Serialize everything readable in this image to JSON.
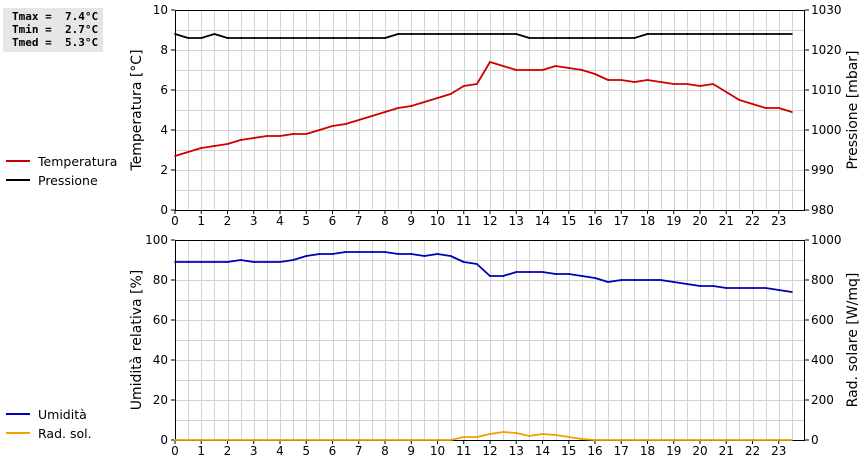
{
  "stats": {
    "tmax": "Tmax =  7.4°C",
    "tmin": "Tmin =  2.7°C",
    "tmed": "Tmed =  5.3°C"
  },
  "chart_data": [
    {
      "type": "line",
      "panel": "top",
      "x_ticks": [
        "0",
        "1",
        "2",
        "3",
        "4",
        "5",
        "6",
        "7",
        "8",
        "9",
        "10",
        "11",
        "12",
        "13",
        "14",
        "15",
        "16",
        "17",
        "18",
        "19",
        "20",
        "21",
        "22",
        "23"
      ],
      "xlim": [
        0,
        24
      ],
      "ylabel": "Temperatura [°C]",
      "ylim": [
        0,
        10
      ],
      "y_ticks": [
        "0",
        "2",
        "4",
        "6",
        "8",
        "10"
      ],
      "ylabel_right": "Pressione [mbar]",
      "ylim_right": [
        980,
        1030
      ],
      "y_ticks_right": [
        "980",
        "990",
        "1000",
        "1010",
        "1020",
        "1030"
      ],
      "grid": true,
      "legend_position": "left",
      "series": [
        {
          "name": "Temperatura",
          "color": "#cc0000",
          "axis": "left",
          "x": [
            0,
            0.5,
            1,
            1.5,
            2,
            2.5,
            3,
            3.5,
            4,
            4.5,
            5,
            5.5,
            6,
            6.5,
            7,
            7.5,
            8,
            8.5,
            9,
            9.5,
            10,
            10.5,
            11,
            11.5,
            12,
            12.5,
            13,
            13.5,
            14,
            14.5,
            15,
            15.5,
            16,
            16.5,
            17,
            17.5,
            18,
            18.5,
            19,
            19.5,
            20,
            20.5,
            21,
            21.5,
            22,
            22.5,
            23,
            23.5
          ],
          "y": [
            2.7,
            2.9,
            3.1,
            3.2,
            3.3,
            3.5,
            3.6,
            3.7,
            3.7,
            3.8,
            3.8,
            4.0,
            4.2,
            4.3,
            4.5,
            4.7,
            4.9,
            5.1,
            5.2,
            5.4,
            5.6,
            5.8,
            6.2,
            6.3,
            7.4,
            7.2,
            7.0,
            7.0,
            7.0,
            7.2,
            7.1,
            7.0,
            6.8,
            6.5,
            6.5,
            6.4,
            6.5,
            6.4,
            6.3,
            6.3,
            6.2,
            6.3,
            5.9,
            5.5,
            5.3,
            5.1,
            5.1,
            4.9
          ]
        },
        {
          "name": "Pressione",
          "color": "#000000",
          "axis": "right",
          "x": [
            0,
            0.5,
            1,
            1.5,
            2,
            2.5,
            3,
            3.5,
            4,
            4.5,
            5,
            5.5,
            6,
            6.5,
            7,
            7.5,
            8,
            8.5,
            9,
            9.5,
            10,
            10.5,
            11,
            11.5,
            12,
            12.5,
            13,
            13.5,
            14,
            14.5,
            15,
            15.5,
            16,
            16.5,
            17,
            17.5,
            18,
            18.5,
            19,
            19.5,
            20,
            20.5,
            21,
            21.5,
            22,
            22.5,
            23,
            23.5
          ],
          "y": [
            1024,
            1023,
            1023,
            1024,
            1023,
            1023,
            1023,
            1023,
            1023,
            1023,
            1023,
            1023,
            1023,
            1023,
            1023,
            1023,
            1023,
            1024,
            1024,
            1024,
            1024,
            1024,
            1024,
            1024,
            1024,
            1024,
            1024,
            1023,
            1023,
            1023,
            1023,
            1023,
            1023,
            1023,
            1023,
            1023,
            1024,
            1024,
            1024,
            1024,
            1024,
            1024,
            1024,
            1024,
            1024,
            1024,
            1024,
            1024
          ]
        }
      ]
    },
    {
      "type": "line",
      "panel": "bottom",
      "x_ticks": [
        "0",
        "1",
        "2",
        "3",
        "4",
        "5",
        "6",
        "7",
        "8",
        "9",
        "10",
        "11",
        "12",
        "13",
        "14",
        "15",
        "16",
        "17",
        "18",
        "19",
        "20",
        "21",
        "22",
        "23"
      ],
      "xlim": [
        0,
        24
      ],
      "ylabel": "Umidità relativa [%]",
      "ylim": [
        0,
        100
      ],
      "y_ticks": [
        "0",
        "20",
        "40",
        "60",
        "80",
        "100"
      ],
      "ylabel_right": "Rad. solare [W/mq]",
      "ylim_right": [
        0,
        1000
      ],
      "y_ticks_right": [
        "0",
        "200",
        "400",
        "600",
        "800",
        "1000"
      ],
      "grid": true,
      "legend_position": "left",
      "series": [
        {
          "name": "Umidità",
          "color": "#0000bb",
          "axis": "left",
          "x": [
            0,
            0.5,
            1,
            1.5,
            2,
            2.5,
            3,
            3.5,
            4,
            4.5,
            5,
            5.5,
            6,
            6.5,
            7,
            7.5,
            8,
            8.5,
            9,
            9.5,
            10,
            10.5,
            11,
            11.5,
            12,
            12.5,
            13,
            13.5,
            14,
            14.5,
            15,
            15.5,
            16,
            16.5,
            17,
            17.5,
            18,
            18.5,
            19,
            19.5,
            20,
            20.5,
            21,
            21.5,
            22,
            22.5,
            23,
            23.5
          ],
          "y": [
            89,
            89,
            89,
            89,
            89,
            90,
            89,
            89,
            89,
            90,
            92,
            93,
            93,
            94,
            94,
            94,
            94,
            93,
            93,
            92,
            93,
            92,
            89,
            88,
            82,
            82,
            84,
            84,
            84,
            83,
            83,
            82,
            81,
            79,
            80,
            80,
            80,
            80,
            79,
            78,
            77,
            77,
            76,
            76,
            76,
            76,
            75,
            74
          ]
        },
        {
          "name": "Rad. sol.",
          "color": "#f0a000",
          "axis": "right",
          "x": [
            0,
            1,
            2,
            3,
            4,
            5,
            6,
            7,
            8,
            9,
            10,
            10.5,
            11,
            11.5,
            12,
            12.5,
            13,
            13.5,
            14,
            14.5,
            15,
            15.5,
            16,
            17,
            18,
            19,
            20,
            21,
            22,
            23,
            23.5
          ],
          "y": [
            0,
            0,
            0,
            0,
            0,
            0,
            0,
            0,
            0,
            0,
            0,
            0,
            15,
            15,
            30,
            40,
            35,
            20,
            30,
            25,
            15,
            5,
            0,
            0,
            0,
            0,
            0,
            0,
            0,
            0,
            0
          ]
        }
      ]
    }
  ]
}
